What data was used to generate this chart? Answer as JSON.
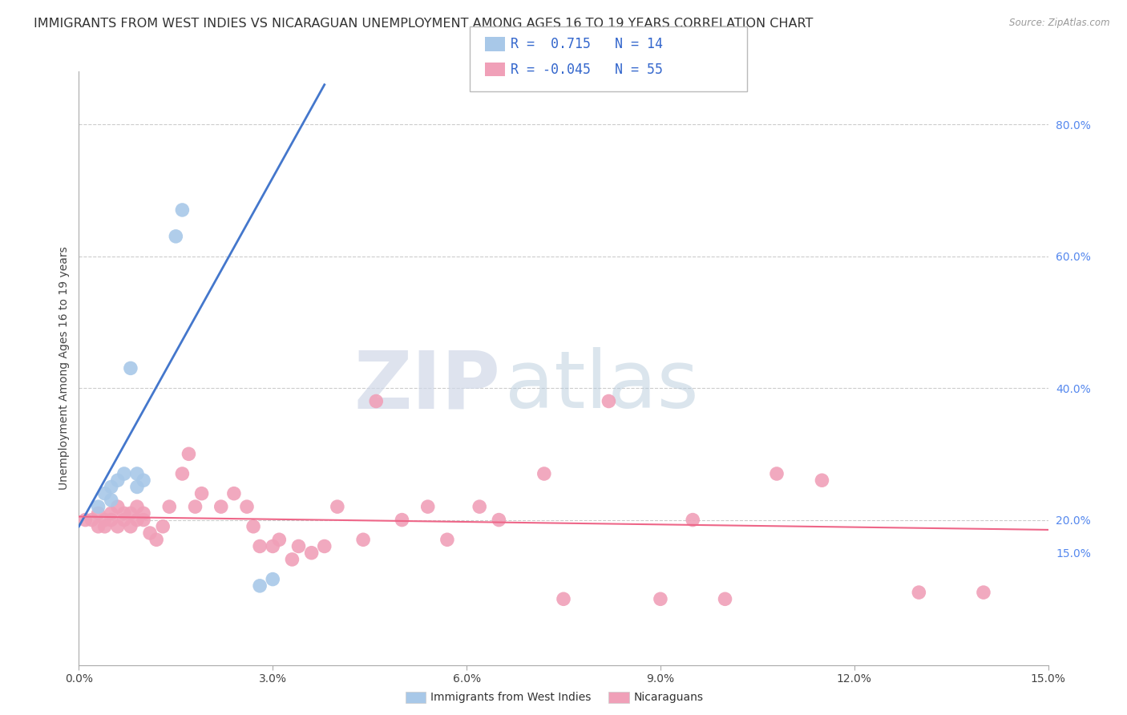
{
  "title": "IMMIGRANTS FROM WEST INDIES VS NICARAGUAN UNEMPLOYMENT AMONG AGES 16 TO 19 YEARS CORRELATION CHART",
  "source": "Source: ZipAtlas.com",
  "ylabel": "Unemployment Among Ages 16 to 19 years",
  "xlim": [
    0.0,
    0.15
  ],
  "ylim": [
    -0.02,
    0.88
  ],
  "xticks": [
    0.0,
    0.03,
    0.06,
    0.09,
    0.12,
    0.15
  ],
  "xtick_labels": [
    "0.0%",
    "3.0%",
    "6.0%",
    "9.0%",
    "12.0%",
    "15.0%"
  ],
  "ytick_vals": [
    0.2,
    0.4,
    0.6,
    0.8
  ],
  "ytick_labels": [
    "20.0%",
    "40.0%",
    "60.0%",
    "80.0%"
  ],
  "ytick_15": 0.15,
  "grid_color": "#cccccc",
  "background_color": "#ffffff",
  "blue_scatter_x": [
    0.003,
    0.004,
    0.005,
    0.005,
    0.006,
    0.007,
    0.008,
    0.009,
    0.009,
    0.01,
    0.015,
    0.016,
    0.028,
    0.03
  ],
  "blue_scatter_y": [
    0.22,
    0.24,
    0.23,
    0.25,
    0.26,
    0.27,
    0.43,
    0.27,
    0.25,
    0.26,
    0.63,
    0.67,
    0.1,
    0.11
  ],
  "pink_scatter_x": [
    0.001,
    0.002,
    0.003,
    0.003,
    0.004,
    0.004,
    0.005,
    0.005,
    0.006,
    0.006,
    0.007,
    0.007,
    0.008,
    0.008,
    0.009,
    0.009,
    0.01,
    0.01,
    0.011,
    0.012,
    0.013,
    0.014,
    0.016,
    0.017,
    0.018,
    0.019,
    0.022,
    0.024,
    0.026,
    0.027,
    0.028,
    0.03,
    0.031,
    0.033,
    0.034,
    0.036,
    0.038,
    0.04,
    0.044,
    0.046,
    0.05,
    0.054,
    0.057,
    0.062,
    0.065,
    0.072,
    0.075,
    0.082,
    0.09,
    0.095,
    0.1,
    0.108,
    0.115,
    0.13,
    0.14
  ],
  "pink_scatter_y": [
    0.2,
    0.2,
    0.19,
    0.21,
    0.19,
    0.2,
    0.21,
    0.2,
    0.19,
    0.22,
    0.2,
    0.21,
    0.19,
    0.21,
    0.2,
    0.22,
    0.2,
    0.21,
    0.18,
    0.17,
    0.19,
    0.22,
    0.27,
    0.3,
    0.22,
    0.24,
    0.22,
    0.24,
    0.22,
    0.19,
    0.16,
    0.16,
    0.17,
    0.14,
    0.16,
    0.15,
    0.16,
    0.22,
    0.17,
    0.38,
    0.2,
    0.22,
    0.17,
    0.22,
    0.2,
    0.27,
    0.08,
    0.38,
    0.08,
    0.2,
    0.08,
    0.27,
    0.26,
    0.09,
    0.09
  ],
  "blue_color": "#a8c8e8",
  "pink_color": "#f0a0b8",
  "blue_line_color": "#4477cc",
  "pink_line_color": "#ee6688",
  "blue_r": "0.715",
  "blue_n": "14",
  "pink_r": "-0.045",
  "pink_n": "55",
  "legend_label_blue": "Immigrants from West Indies",
  "legend_label_pink": "Nicaraguans",
  "watermark_zip": "ZIP",
  "watermark_atlas": "atlas",
  "title_fontsize": 11.5,
  "axis_label_fontsize": 10,
  "legend_fontsize": 12,
  "tick_fontsize": 10
}
